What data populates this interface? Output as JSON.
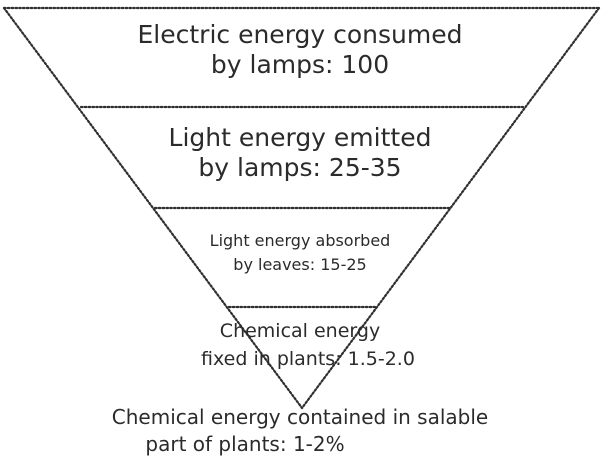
{
  "diagram": {
    "levels": [
      {
        "line1": "Electric energy consumed",
        "line2": "by lamps: 100"
      },
      {
        "line1": "Light energy emitted",
        "line2": "by lamps: 25-35"
      },
      {
        "line1": "Light energy absorbed",
        "line2": "by leaves: 15-25"
      },
      {
        "line1": "Chemical energy",
        "line2": "fixed in plants: 1.5-2.0"
      },
      {
        "line1": "Chemical energy contained in salable",
        "line2": "part of plants: 1-2%"
      }
    ]
  }
}
